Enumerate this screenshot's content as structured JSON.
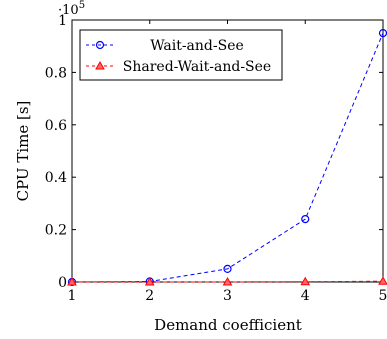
{
  "chart_data": {
    "type": "line",
    "title": "",
    "xlabel": "Demand coefficient",
    "ylabel": "CPU Time [s]",
    "y_multiplier_label": "·10",
    "y_multiplier_exponent": "5",
    "xlim": [
      1,
      5
    ],
    "ylim": [
      0,
      1
    ],
    "x_ticks": [
      1,
      2,
      3,
      4,
      5
    ],
    "y_ticks": [
      0,
      0.2,
      0.4,
      0.6,
      0.8,
      1
    ],
    "y_tick_labels": [
      "0",
      "0.2",
      "0.4",
      "0.6",
      "0.8",
      "1"
    ],
    "grid": false,
    "legend_position": "top-left",
    "series": [
      {
        "name": "Wait-and-See",
        "color": "#0000ff",
        "marker": "circle",
        "line_style": "dashed",
        "x": [
          1,
          2,
          3,
          4,
          5
        ],
        "y": [
          0.0,
          0.002,
          0.05,
          0.24,
          0.95
        ]
      },
      {
        "name": "Shared-Wait-and-See",
        "color": "#ff0000",
        "marker": "triangle",
        "line_style": "dashed",
        "x": [
          1,
          2,
          3,
          4,
          5
        ],
        "y": [
          0.0,
          0.0,
          0.0,
          0.001,
          0.003
        ]
      }
    ]
  }
}
